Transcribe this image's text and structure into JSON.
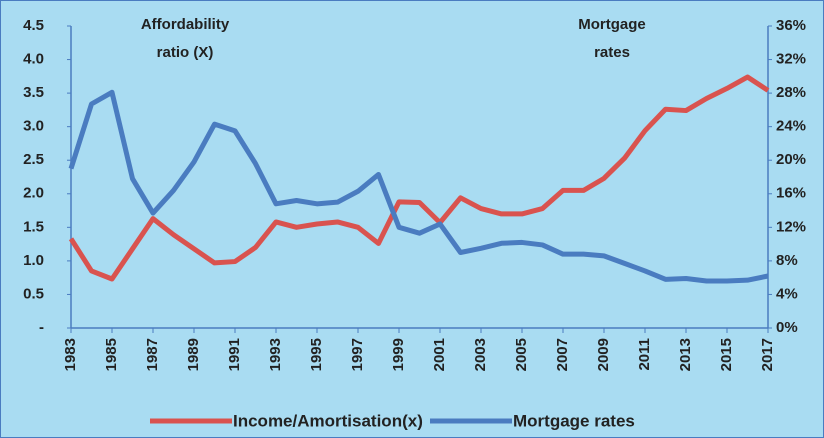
{
  "chart_data": {
    "type": "line",
    "annotations": [
      [
        "Affordability",
        "ratio (X)"
      ],
      [
        "Mortgage",
        "rates"
      ]
    ],
    "x": [
      1983,
      1984,
      1985,
      1986,
      1987,
      1988,
      1989,
      1990,
      1991,
      1992,
      1993,
      1994,
      1995,
      1996,
      1997,
      1998,
      1999,
      2000,
      2001,
      2002,
      2003,
      2004,
      2005,
      2006,
      2007,
      2008,
      2009,
      2010,
      2011,
      2012,
      2013,
      2014,
      2015,
      2016,
      2017
    ],
    "xlim": [
      1983,
      2017
    ],
    "xticks": [
      1983,
      1985,
      1987,
      1989,
      1991,
      1993,
      1995,
      1997,
      1999,
      2001,
      2003,
      2005,
      2007,
      2009,
      2011,
      2013,
      2015,
      2017
    ],
    "ylim": [
      0,
      4.5
    ],
    "yticks": [
      {
        "value": 0,
        "label": "-"
      },
      0.5,
      {
        "value": 1,
        "label": "1.0"
      },
      1.5,
      {
        "value": 2,
        "label": "2.0"
      },
      2.5,
      {
        "value": 3,
        "label": "3.0"
      },
      3.5,
      {
        "value": 4,
        "label": "4.0"
      },
      4.5
    ],
    "y2lim": [
      0,
      36
    ],
    "y2ticks": [
      {
        "value": 0,
        "label": "0%"
      },
      {
        "value": 4,
        "label": "4%"
      },
      {
        "value": 8,
        "label": "8%"
      },
      {
        "value": 12,
        "label": "12%"
      },
      {
        "value": 16,
        "label": "16%"
      },
      {
        "value": 20,
        "label": "20%"
      },
      {
        "value": 24,
        "label": "24%"
      },
      {
        "value": 28,
        "label": "28%"
      },
      {
        "value": 32,
        "label": "32%"
      },
      {
        "value": 36,
        "label": "36%"
      }
    ],
    "series": [
      {
        "name": "Income/Amortisation(x)",
        "color": "#d9534f",
        "values": [
          1.33,
          0.85,
          0.73,
          1.18,
          1.63,
          1.39,
          1.18,
          0.97,
          0.99,
          1.2,
          1.58,
          1.5,
          1.55,
          1.58,
          1.5,
          1.26,
          1.88,
          1.87,
          1.57,
          1.94,
          1.78,
          1.7,
          1.7,
          1.78,
          2.05,
          2.05,
          2.23,
          2.53,
          2.94,
          3.26,
          3.24,
          3.42,
          3.57,
          3.74,
          3.54
        ]
      },
      {
        "name": "Mortgage rates",
        "color": "#4a7cc0",
        "axis": "y2",
        "values": [
          19,
          26.7,
          28.1,
          17.8,
          13.7,
          16.4,
          19.8,
          24.3,
          23.5,
          19.6,
          14.8,
          15.2,
          14.8,
          15,
          16.3,
          18.3,
          12,
          11.3,
          12.4,
          9,
          9.5,
          10.1,
          10.2,
          9.9,
          8.8,
          8.8,
          8.6,
          7.7,
          6.8,
          5.8,
          5.9,
          5.6,
          5.6,
          5.7,
          6.2
        ]
      }
    ]
  }
}
